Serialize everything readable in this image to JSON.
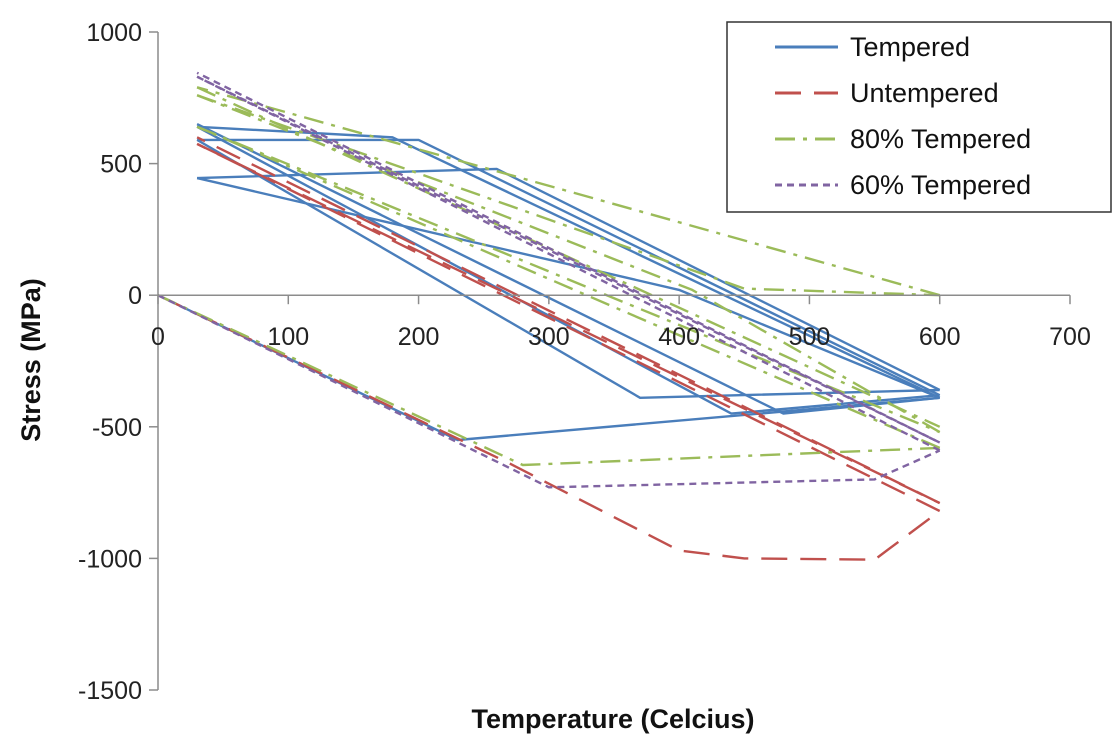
{
  "chart_data": {
    "type": "line",
    "xlabel": "Temperature (Celcius)",
    "ylabel": "Stress (MPa)",
    "xlim": [
      0,
      700
    ],
    "ylim": [
      -1500,
      1000
    ],
    "xticks": [
      0,
      100,
      200,
      300,
      400,
      500,
      600,
      700
    ],
    "yticks": [
      1000,
      500,
      0,
      -500,
      -1000,
      -1500
    ],
    "grid": false,
    "legend_position": "top-right",
    "series": [
      {
        "name": "Tempered",
        "color": "#4a7ebb",
        "dash": "solid",
        "cycles": [
          {
            "x": [
              0,
              230,
              600
            ],
            "y": [
              0,
              -550,
              -390
            ]
          },
          {
            "x": [
              600,
              400,
              30
            ],
            "y": [
              -390,
              20,
              445
            ]
          },
          {
            "x": [
              30,
              260,
              600
            ],
            "y": [
              445,
              480,
              -360
            ]
          },
          {
            "x": [
              600,
              370,
              30
            ],
            "y": [
              -360,
              -390,
              590
            ]
          },
          {
            "x": [
              30,
              200,
              600
            ],
            "y": [
              590,
              590,
              -380
            ]
          },
          {
            "x": [
              600,
              440,
              30
            ],
            "y": [
              -380,
              -450,
              640
            ]
          },
          {
            "x": [
              30,
              180,
              600
            ],
            "y": [
              640,
              600,
              -390
            ]
          },
          {
            "x": [
              600,
              480,
              30
            ],
            "y": [
              -390,
              -450,
              650
            ]
          }
        ]
      },
      {
        "name": "Untempered",
        "color": "#c0504d",
        "dash": "dashed",
        "cycles": [
          {
            "x": [
              0,
              270,
              400,
              450,
              550,
              600
            ],
            "y": [
              0,
              -640,
              -970,
              -1000,
              -1005,
              -820
            ]
          },
          {
            "x": [
              600,
              30
            ],
            "y": [
              -820,
              575
            ]
          },
          {
            "x": [
              30,
              600
            ],
            "y": [
              575,
              -790
            ]
          },
          {
            "x": [
              600,
              30
            ],
            "y": [
              -790,
              600
            ]
          }
        ]
      },
      {
        "name": "80% Tempered",
        "color": "#9bbb59",
        "dash": "dashdot",
        "cycles": [
          {
            "x": [
              0,
              280,
              600
            ],
            "y": [
              0,
              -645,
              -580
            ]
          },
          {
            "x": [
              600,
              30
            ],
            "y": [
              -580,
              640
            ]
          },
          {
            "x": [
              30,
              600
            ],
            "y": [
              640,
              -520
            ]
          },
          {
            "x": [
              600,
              410,
              30
            ],
            "y": [
              -520,
              20,
              760
            ]
          },
          {
            "x": [
              30,
              450,
              600
            ],
            "y": [
              760,
              25,
              0
            ]
          },
          {
            "x": [
              600,
              30
            ],
            "y": [
              0,
              790
            ]
          },
          {
            "x": [
              30,
              600
            ],
            "y": [
              790,
              -500
            ]
          }
        ]
      },
      {
        "name": "60% Tempered",
        "color": "#8064a2",
        "dash": "dotted",
        "cycles": [
          {
            "x": [
              0,
              300,
              550,
              600
            ],
            "y": [
              0,
              -730,
              -700,
              -590
            ]
          },
          {
            "x": [
              600,
              30
            ],
            "y": [
              -590,
              830
            ]
          },
          {
            "x": [
              30,
              600
            ],
            "y": [
              830,
              -560
            ]
          },
          {
            "x": [
              600,
              30
            ],
            "y": [
              -560,
              845
            ]
          }
        ]
      }
    ]
  }
}
